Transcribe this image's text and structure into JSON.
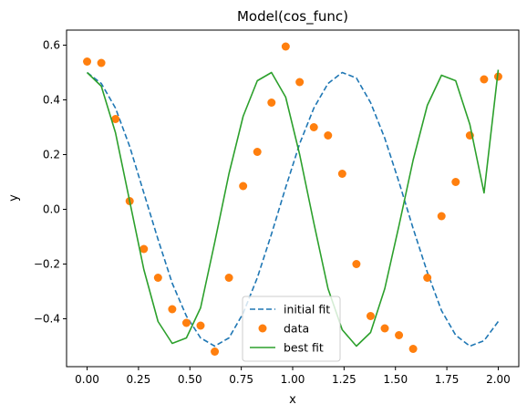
{
  "chart_data": {
    "type": "line",
    "title": "Model(cos_func)",
    "xlabel": "x",
    "ylabel": "y",
    "xlim": [
      -0.1,
      2.1
    ],
    "ylim": [
      -0.575,
      0.655
    ],
    "xticks": [
      0.0,
      0.25,
      0.5,
      0.75,
      1.0,
      1.25,
      1.5,
      1.75,
      2.0
    ],
    "xtick_labels": [
      "0.00",
      "0.25",
      "0.50",
      "0.75",
      "1.00",
      "1.25",
      "1.50",
      "1.75",
      "2.00"
    ],
    "yticks": [
      -0.4,
      -0.2,
      0.0,
      0.2,
      0.4,
      0.6
    ],
    "ytick_labels": [
      "−0.4",
      "−0.2",
      "0.0",
      "0.2",
      "0.4",
      "0.6"
    ],
    "grid": false,
    "legend_position": "bottom-center",
    "series": [
      {
        "name": "initial fit",
        "kind": "line",
        "style": "dashed",
        "color": "#1f77b4",
        "x": [
          0.0,
          0.069,
          0.138,
          0.207,
          0.276,
          0.345,
          0.414,
          0.483,
          0.552,
          0.621,
          0.69,
          0.759,
          0.828,
          0.897,
          0.966,
          1.034,
          1.103,
          1.172,
          1.241,
          1.31,
          1.379,
          1.448,
          1.517,
          1.586,
          1.655,
          1.724,
          1.793,
          1.862,
          1.931,
          2.0
        ],
        "y": [
          0.5,
          0.46,
          0.37,
          0.23,
          0.06,
          -0.11,
          -0.27,
          -0.39,
          -0.47,
          -0.5,
          -0.47,
          -0.38,
          -0.25,
          -0.09,
          0.08,
          0.24,
          0.37,
          0.46,
          0.5,
          0.48,
          0.39,
          0.26,
          0.1,
          -0.07,
          -0.23,
          -0.37,
          -0.46,
          -0.5,
          -0.48,
          -0.41
        ]
      },
      {
        "name": "data",
        "kind": "scatter",
        "color": "#ff7f0e",
        "x": [
          0.0,
          0.069,
          0.138,
          0.207,
          0.276,
          0.345,
          0.414,
          0.483,
          0.552,
          0.621,
          0.69,
          0.759,
          0.828,
          0.897,
          0.966,
          1.034,
          1.103,
          1.172,
          1.241,
          1.31,
          1.379,
          1.448,
          1.517,
          1.586,
          1.655,
          1.724,
          1.793,
          1.862,
          1.931,
          2.0
        ],
        "y": [
          0.54,
          0.535,
          0.33,
          0.03,
          -0.145,
          -0.25,
          -0.365,
          -0.415,
          -0.425,
          -0.52,
          -0.25,
          0.085,
          0.21,
          0.39,
          0.595,
          0.465,
          0.3,
          0.27,
          0.13,
          -0.2,
          -0.39,
          -0.435,
          -0.46,
          -0.51,
          -0.25,
          -0.025,
          0.1,
          0.27,
          0.475,
          0.485
        ]
      },
      {
        "name": "best fit",
        "kind": "line",
        "style": "solid",
        "color": "#2ca02c",
        "x": [
          0.0,
          0.069,
          0.138,
          0.207,
          0.276,
          0.345,
          0.414,
          0.483,
          0.552,
          0.621,
          0.69,
          0.759,
          0.828,
          0.897,
          0.966,
          1.034,
          1.103,
          1.172,
          1.241,
          1.31,
          1.379,
          1.448,
          1.517,
          1.586,
          1.655,
          1.724,
          1.793,
          1.862,
          1.931,
          2.0
        ],
        "y": [
          0.5,
          0.45,
          0.28,
          0.03,
          -0.22,
          -0.41,
          -0.49,
          -0.47,
          -0.36,
          -0.12,
          0.13,
          0.34,
          0.47,
          0.5,
          0.41,
          0.2,
          -0.05,
          -0.29,
          -0.44,
          -0.5,
          -0.45,
          -0.29,
          -0.06,
          0.18,
          0.38,
          0.49,
          0.47,
          0.31,
          0.06,
          0.51
        ]
      }
    ]
  }
}
